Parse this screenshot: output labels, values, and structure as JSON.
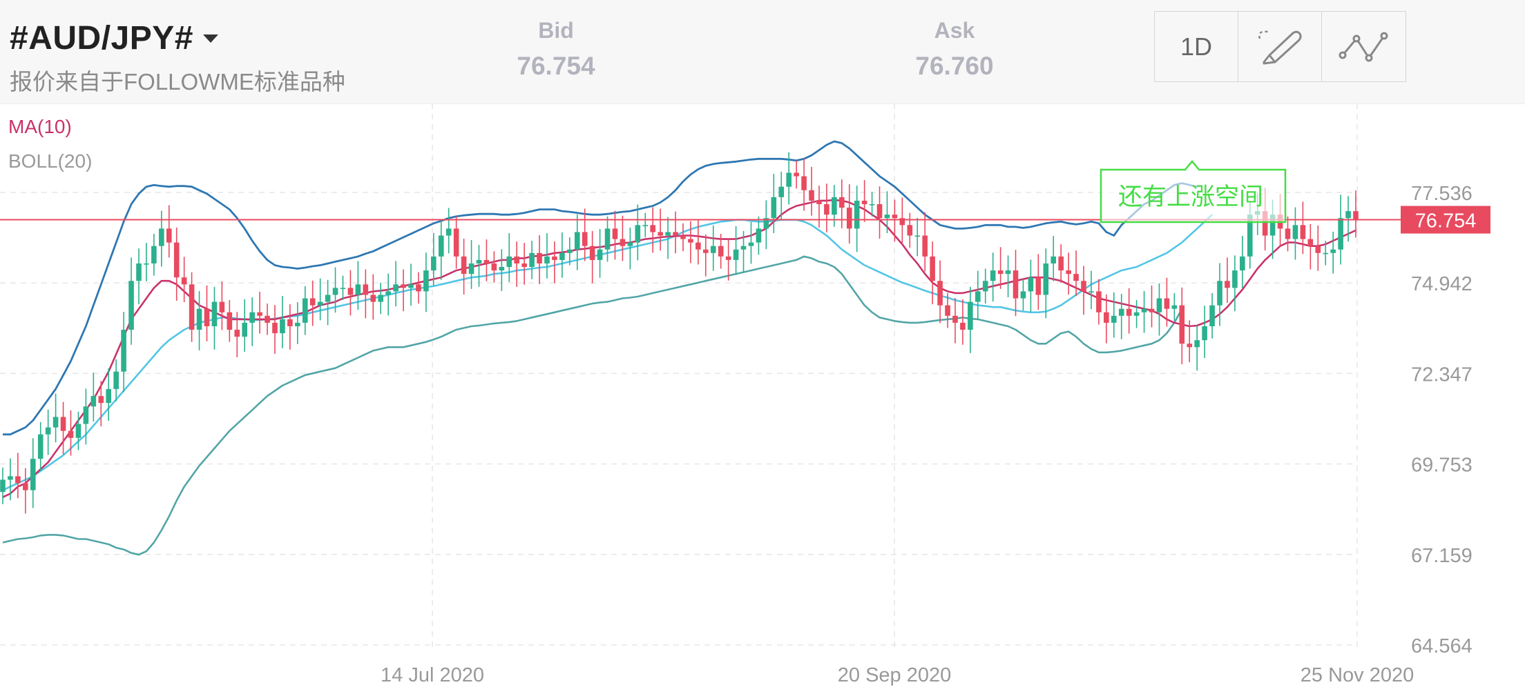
{
  "header": {
    "symbol": "#AUD/JPY#",
    "source": "报价来自于FOLLOWME标准品种",
    "bid_label": "Bid",
    "bid_value": "76.754",
    "ask_label": "Ask",
    "ask_value": "76.760",
    "period": "1D",
    "draw_tool_icon": "pencil-icon",
    "indicator_tool_icon": "line-chart-icon"
  },
  "indicators": {
    "ma_label": "MA(10)",
    "boll_label": "BOLL(20)"
  },
  "chart_data": {
    "type": "candlestick",
    "instrument": "#AUD/JPY#",
    "timeframe": "1D",
    "y_ticks": [
      77.536,
      74.942,
      72.347,
      69.753,
      67.159,
      64.564
    ],
    "ylim": [
      64.564,
      77.536
    ],
    "x_ticks": [
      "14 Jul 2020",
      "20 Sep 2020",
      "25 Nov 2020"
    ],
    "current_price": 76.754,
    "annotation": "还有上涨空间",
    "colors": {
      "up": "#2bb08d",
      "down": "#e84a5f",
      "ma": "#c8326b",
      "boll_upper": "#2e77b2",
      "boll_middle": "#52c5e6",
      "boll_lower": "#52a5a6",
      "price_line": "#e84a5f",
      "annotation": "#44dd44",
      "tick_text": "#999999"
    },
    "close": [
      69.3,
      69.4,
      69.2,
      69.0,
      69.9,
      70.6,
      70.8,
      71.1,
      70.7,
      70.5,
      70.9,
      71.4,
      71.7,
      71.5,
      71.9,
      72.4,
      73.6,
      75.0,
      75.5,
      75.5,
      76.0,
      76.5,
      76.1,
      75.1,
      74.9,
      73.6,
      74.2,
      73.7,
      74.4,
      74.1,
      73.6,
      73.4,
      73.8,
      74.1,
      74.0,
      73.8,
      73.5,
      73.9,
      73.7,
      73.8,
      74.5,
      74.3,
      74.4,
      74.6,
      74.8,
      74.8,
      74.6,
      74.9,
      74.6,
      74.4,
      74.6,
      74.7,
      74.9,
      74.8,
      74.9,
      74.7,
      75.3,
      75.7,
      76.3,
      76.5,
      75.7,
      75.2,
      75.5,
      75.6,
      75.5,
      75.3,
      75.4,
      75.7,
      75.5,
      75.4,
      75.8,
      75.5,
      75.7,
      75.6,
      75.8,
      75.9,
      76.4,
      76.0,
      75.6,
      75.9,
      76.5,
      76.2,
      76.0,
      76.1,
      76.6,
      76.6,
      76.4,
      76.3,
      76.4,
      76.3,
      76.2,
      76.1,
      75.9,
      75.8,
      76.0,
      75.7,
      75.6,
      75.9,
      76.0,
      76.1,
      76.5,
      76.8,
      77.4,
      77.7,
      78.1,
      78.0,
      77.6,
      77.3,
      77.2,
      76.9,
      77.4,
      77.1,
      76.5,
      77.3,
      77.2,
      77.2,
      76.8,
      76.9,
      76.8,
      76.6,
      76.3,
      76.3,
      75.7,
      75.0,
      74.3,
      74.0,
      73.8,
      73.6,
      74.4,
      74.7,
      75.0,
      75.3,
      75.2,
      75.3,
      74.5,
      74.7,
      75.1,
      74.6,
      75.5,
      75.7,
      75.3,
      75.2,
      75.0,
      74.7,
      74.7,
      74.1,
      73.8,
      74.0,
      74.2,
      74.0,
      74.1,
      74.2,
      74.1,
      74.5,
      74.2,
      74.3,
      73.2,
      73.1,
      73.3,
      73.7,
      74.3,
      75.0,
      74.8,
      75.3,
      75.7,
      76.9,
      77.0,
      76.3,
      76.9,
      76.5,
      76.2,
      76.6,
      76.2,
      76.0,
      75.8,
      75.8,
      75.9,
      76.8,
      77.0,
      76.754
    ],
    "ma10": [
      68.8,
      68.9,
      69.1,
      69.2,
      69.4,
      69.6,
      69.8,
      70.1,
      70.4,
      70.7,
      71.0,
      71.3,
      71.6,
      72.0,
      72.4,
      72.9,
      73.4,
      73.9,
      74.2,
      74.5,
      74.8,
      75.0,
      75.0,
      74.9,
      74.7,
      74.5,
      74.3,
      74.2,
      74.1,
      74.0,
      73.9,
      73.9,
      73.9,
      73.9,
      73.9,
      73.9,
      73.9,
      73.95,
      74.0,
      74.05,
      74.1,
      74.2,
      74.3,
      74.35,
      74.4,
      74.5,
      74.55,
      74.6,
      74.65,
      74.7,
      74.72,
      74.75,
      74.8,
      74.85,
      74.9,
      74.95,
      75.0,
      75.05,
      75.1,
      75.2,
      75.3,
      75.35,
      75.4,
      75.45,
      75.5,
      75.55,
      75.6,
      75.6,
      75.65,
      75.65,
      75.7,
      75.72,
      75.75,
      75.8,
      75.82,
      75.85,
      75.9,
      75.92,
      75.95,
      75.97,
      76.0,
      76.05,
      76.08,
      76.1,
      76.15,
      76.2,
      76.22,
      76.25,
      76.27,
      76.28,
      76.3,
      76.3,
      76.28,
      76.25,
      76.22,
      76.2,
      76.2,
      76.2,
      76.25,
      76.3,
      76.4,
      76.5,
      76.7,
      76.9,
      77.05,
      77.15,
      77.2,
      77.25,
      77.3,
      77.3,
      77.32,
      77.3,
      77.25,
      77.15,
      77.05,
      76.9,
      76.75,
      76.55,
      76.3,
      76.05,
      75.75,
      75.5,
      75.2,
      74.95,
      74.8,
      74.7,
      74.65,
      74.65,
      74.7,
      74.75,
      74.8,
      74.85,
      74.9,
      74.95,
      75.0,
      75.05,
      75.1,
      75.1,
      75.1,
      75.05,
      75.0,
      74.9,
      74.8,
      74.7,
      74.6,
      74.5,
      74.45,
      74.4,
      74.35,
      74.3,
      74.25,
      74.2,
      74.15,
      74.05,
      73.9,
      73.8,
      73.75,
      73.7,
      73.72,
      73.8,
      73.9,
      74.05,
      74.25,
      74.5,
      74.75,
      75.05,
      75.35,
      75.6,
      75.8,
      76.0,
      76.1,
      76.1,
      76.05,
      76.0,
      76.0,
      76.05,
      76.15,
      76.25,
      76.35,
      76.45
    ],
    "boll_upper": [
      70.6,
      70.6,
      70.7,
      70.8,
      71.0,
      71.3,
      71.6,
      71.9,
      72.3,
      72.7,
      73.2,
      73.7,
      74.3,
      74.9,
      75.5,
      76.1,
      76.7,
      77.2,
      77.5,
      77.7,
      77.75,
      77.72,
      77.7,
      77.72,
      77.72,
      77.7,
      77.6,
      77.5,
      77.35,
      77.2,
      77.05,
      76.8,
      76.5,
      76.15,
      75.85,
      75.6,
      75.45,
      75.4,
      75.38,
      75.35,
      75.38,
      75.42,
      75.45,
      75.5,
      75.55,
      75.6,
      75.65,
      75.7,
      75.78,
      75.85,
      75.95,
      76.05,
      76.15,
      76.25,
      76.35,
      76.45,
      76.55,
      76.65,
      76.72,
      76.8,
      76.85,
      76.88,
      76.9,
      76.92,
      76.92,
      76.92,
      76.9,
      76.9,
      76.92,
      76.95,
      77.0,
      77.05,
      77.05,
      77.05,
      77.0,
      76.98,
      76.95,
      76.92,
      76.9,
      76.9,
      76.92,
      76.95,
      76.98,
      77.0,
      77.05,
      77.1,
      77.15,
      77.25,
      77.4,
      77.6,
      77.85,
      78.05,
      78.2,
      78.3,
      78.35,
      78.38,
      78.4,
      78.42,
      78.45,
      78.48,
      78.5,
      78.5,
      78.5,
      78.5,
      78.48,
      78.45,
      78.5,
      78.6,
      78.75,
      78.9,
      79.0,
      78.95,
      78.8,
      78.6,
      78.4,
      78.2,
      78.0,
      77.85,
      77.7,
      77.5,
      77.3,
      77.1,
      76.9,
      76.75,
      76.6,
      76.55,
      76.5,
      76.5,
      76.52,
      76.55,
      76.6,
      76.6,
      76.6,
      76.55,
      76.55,
      76.52,
      76.55,
      76.6,
      76.65,
      76.68,
      76.7,
      76.65,
      76.62,
      76.65,
      76.7,
      76.65,
      76.4,
      76.3,
      76.6,
      76.8,
      77.0,
      77.2,
      77.3,
      77.45,
      77.6,
      77.75,
      77.8,
      77.75,
      77.7
    ],
    "boll_middle": [
      69.0,
      69.1,
      69.2,
      69.3,
      69.4,
      69.55,
      69.7,
      69.85,
      70.0,
      70.2,
      70.4,
      70.6,
      70.85,
      71.1,
      71.35,
      71.6,
      71.85,
      72.1,
      72.35,
      72.6,
      72.85,
      73.1,
      73.3,
      73.45,
      73.6,
      73.7,
      73.8,
      73.85,
      73.9,
      73.95,
      73.95,
      73.92,
      73.9,
      73.88,
      73.88,
      73.9,
      73.92,
      73.95,
      73.98,
      74.0,
      74.05,
      74.1,
      74.15,
      74.2,
      74.25,
      74.3,
      74.35,
      74.4,
      74.45,
      74.5,
      74.55,
      74.6,
      74.65,
      74.7,
      74.75,
      74.78,
      74.82,
      74.85,
      74.9,
      74.95,
      75.0,
      75.05,
      75.1,
      75.12,
      75.15,
      75.2,
      75.22,
      75.25,
      75.3,
      75.32,
      75.35,
      75.38,
      75.4,
      75.45,
      75.5,
      75.55,
      75.6,
      75.65,
      75.7,
      75.75,
      75.8,
      75.85,
      75.9,
      75.95,
      76.0,
      76.05,
      76.1,
      76.15,
      76.2,
      76.3,
      76.4,
      76.48,
      76.55,
      76.6,
      76.65,
      76.7,
      76.72,
      76.75,
      76.75,
      76.72,
      76.7,
      76.7,
      76.72,
      76.75,
      76.75,
      76.75,
      76.7,
      76.6,
      76.45,
      76.3,
      76.1,
      75.9,
      75.75,
      75.6,
      75.45,
      75.35,
      75.25,
      75.15,
      75.05,
      74.95,
      74.88,
      74.8,
      74.72,
      74.65,
      74.58,
      74.52,
      74.45,
      74.4,
      74.35,
      74.3,
      74.28,
      74.25,
      74.25,
      74.2,
      74.15,
      74.12,
      74.1,
      74.1,
      74.12,
      74.2,
      74.3,
      74.45,
      74.6,
      74.75,
      74.9,
      75.0,
      75.1,
      75.2,
      75.3,
      75.35,
      75.4,
      75.5,
      75.6,
      75.7,
      75.8,
      75.95,
      76.1,
      76.3,
      76.5,
      76.7,
      76.9
    ],
    "boll_lower": [
      67.5,
      67.55,
      67.6,
      67.62,
      67.65,
      67.7,
      67.72,
      67.72,
      67.7,
      67.65,
      67.6,
      67.6,
      67.55,
      67.5,
      67.45,
      67.35,
      67.3,
      67.2,
      67.15,
      67.25,
      67.5,
      67.85,
      68.25,
      68.7,
      69.1,
      69.4,
      69.7,
      69.95,
      70.2,
      70.45,
      70.7,
      70.9,
      71.1,
      71.3,
      71.5,
      71.7,
      71.85,
      72.0,
      72.1,
      72.2,
      72.3,
      72.35,
      72.4,
      72.45,
      72.5,
      72.6,
      72.7,
      72.8,
      72.9,
      73.0,
      73.05,
      73.1,
      73.1,
      73.1,
      73.15,
      73.2,
      73.25,
      73.32,
      73.4,
      73.5,
      73.6,
      73.65,
      73.7,
      73.72,
      73.75,
      73.78,
      73.8,
      73.82,
      73.85,
      73.9,
      73.95,
      74.0,
      74.05,
      74.1,
      74.15,
      74.2,
      74.25,
      74.3,
      74.35,
      74.38,
      74.4,
      74.45,
      74.5,
      74.52,
      74.55,
      74.6,
      74.65,
      74.7,
      74.75,
      74.8,
      74.85,
      74.9,
      74.95,
      75.0,
      75.05,
      75.1,
      75.15,
      75.2,
      75.25,
      75.3,
      75.35,
      75.4,
      75.45,
      75.5,
      75.55,
      75.6,
      75.7,
      75.65,
      75.55,
      75.5,
      75.4,
      75.2,
      74.9,
      74.6,
      74.3,
      74.1,
      73.95,
      73.9,
      73.85,
      73.82,
      73.8,
      73.8,
      73.82,
      73.85,
      73.88,
      73.9,
      73.92,
      73.95,
      73.92,
      73.9,
      73.85,
      73.8,
      73.75,
      73.7,
      73.6,
      73.45,
      73.3,
      73.2,
      73.2,
      73.35,
      73.5,
      73.55,
      73.4,
      73.2,
      73.05,
      72.95,
      72.95,
      72.97,
      73.0,
      73.05,
      73.1,
      73.15,
      73.2,
      73.3,
      73.5,
      73.8,
      74.2
    ]
  }
}
